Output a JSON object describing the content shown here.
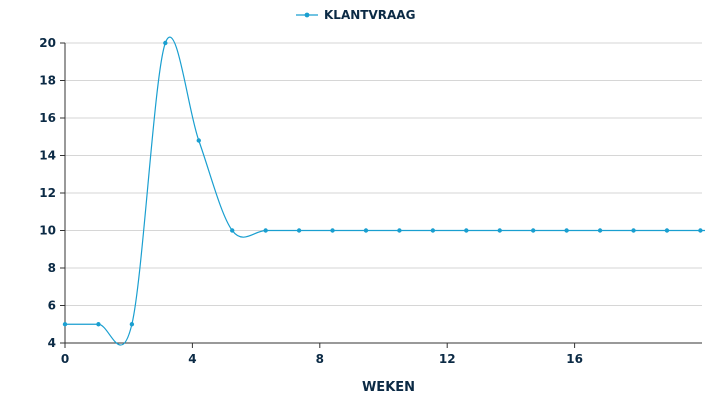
{
  "chart_data": {
    "type": "line",
    "title": "",
    "xlabel": "WEKEN",
    "ylabel": "",
    "xlim": [
      0,
      20
    ],
    "ylim": [
      4,
      20
    ],
    "x_ticks": [
      0,
      4,
      8,
      12,
      16
    ],
    "y_ticks": [
      4,
      6,
      8,
      10,
      12,
      14,
      16,
      18,
      20
    ],
    "grid": "horizontal",
    "legend_position": "top-center",
    "series": [
      {
        "name": "KLANTVRAAG",
        "color": "#1a9fd0",
        "smooth": true,
        "x": [
          0,
          1.05,
          2.1,
          3.15,
          4.2,
          5.25,
          6.3,
          7.35,
          8.4,
          9.45,
          10.5,
          11.55,
          12.6,
          13.65,
          14.7,
          15.75,
          16.8,
          17.85,
          18.9,
          19.95
        ],
        "y": [
          5,
          5,
          5,
          20,
          14.8,
          10,
          10,
          10,
          10,
          10,
          10,
          10,
          10,
          10,
          10,
          10,
          10,
          10,
          10,
          10
        ]
      }
    ]
  }
}
